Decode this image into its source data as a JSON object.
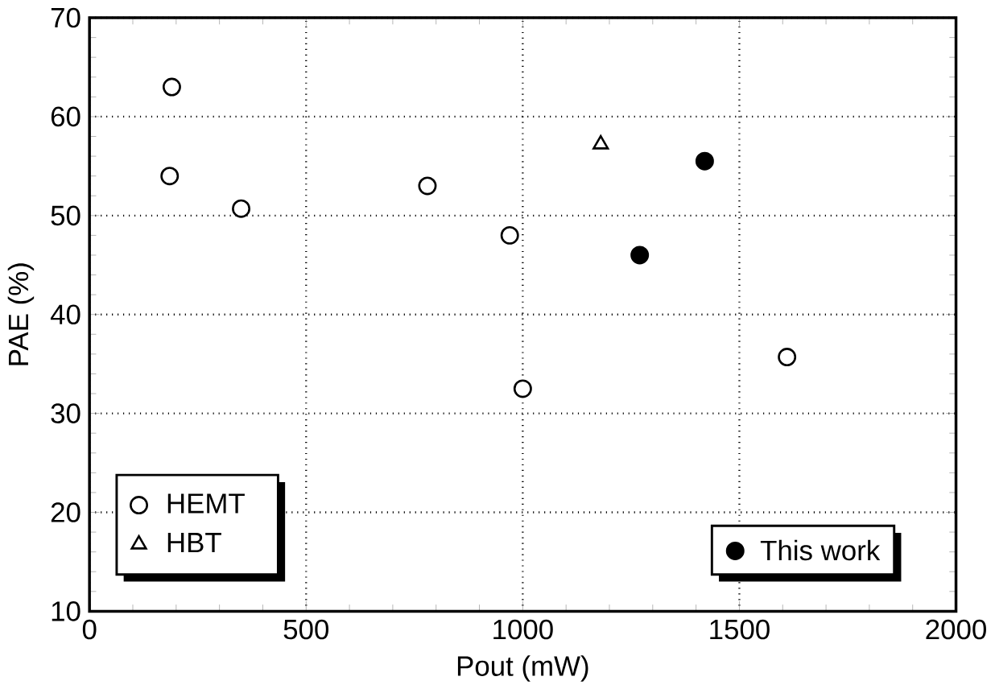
{
  "chart_data": {
    "type": "scatter",
    "xlabel": "Pout (mW)",
    "ylabel": "PAE (%)",
    "xlim": [
      0,
      2000
    ],
    "xticks": [
      0,
      500,
      1000,
      1500,
      2000
    ],
    "ylim": [
      10,
      70
    ],
    "yticks": [
      10,
      20,
      30,
      40,
      50,
      60,
      70
    ],
    "grid": true,
    "legend": "bottom left",
    "series": [
      {
        "name": "HEMT",
        "color": "#000000",
        "marker": "circle",
        "x": [
          190,
          185,
          350,
          780,
          970,
          1000,
          1610
        ],
        "values": [
          63,
          54,
          50.7,
          53,
          48,
          32.5,
          35.7
        ]
      },
      {
        "name": "HBT",
        "color": "#000000",
        "marker": "triangle",
        "x": [
          1180
        ],
        "values": [
          57.2
        ]
      },
      {
        "name": "This work",
        "color": "#000000",
        "marker": "circle",
        "x": [
          1270,
          1420
        ],
        "values": [
          46,
          55.5
        ]
      }
    ]
  }
}
